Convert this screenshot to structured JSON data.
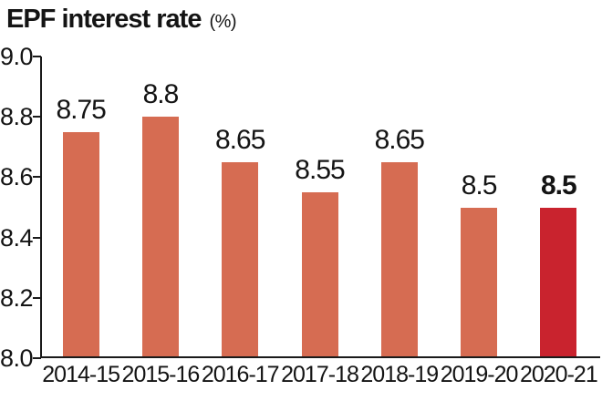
{
  "chart_data": {
    "type": "bar",
    "title": "EPF interest rate (%)",
    "title_main": "EPF interest rate",
    "title_unit": "(%)",
    "categories": [
      "2014-15",
      "2015-16",
      "2016-17",
      "2017-18",
      "2018-19",
      "2019-20",
      "2020-21"
    ],
    "values": [
      8.75,
      8.8,
      8.65,
      8.55,
      8.65,
      8.5,
      8.5
    ],
    "value_labels": [
      "8.75",
      "8.8",
      "8.65",
      "8.55",
      "8.65",
      "8.5",
      "8.5"
    ],
    "xlabel": "",
    "ylabel": "",
    "ylim": [
      8.0,
      9.0
    ],
    "yticks": [
      9.0,
      8.8,
      8.6,
      8.4,
      8.2,
      8.0
    ],
    "ytick_labels": [
      "9.0",
      "8.8",
      "8.6",
      "8.4",
      "8.2",
      "8.0"
    ],
    "grid": false,
    "legend": "none",
    "bar_color": "#d66c52",
    "highlight_bar_color": "#c9232e",
    "highlight_index": 6,
    "text_color": "#141414",
    "axis_color": "#1a1a1a"
  }
}
